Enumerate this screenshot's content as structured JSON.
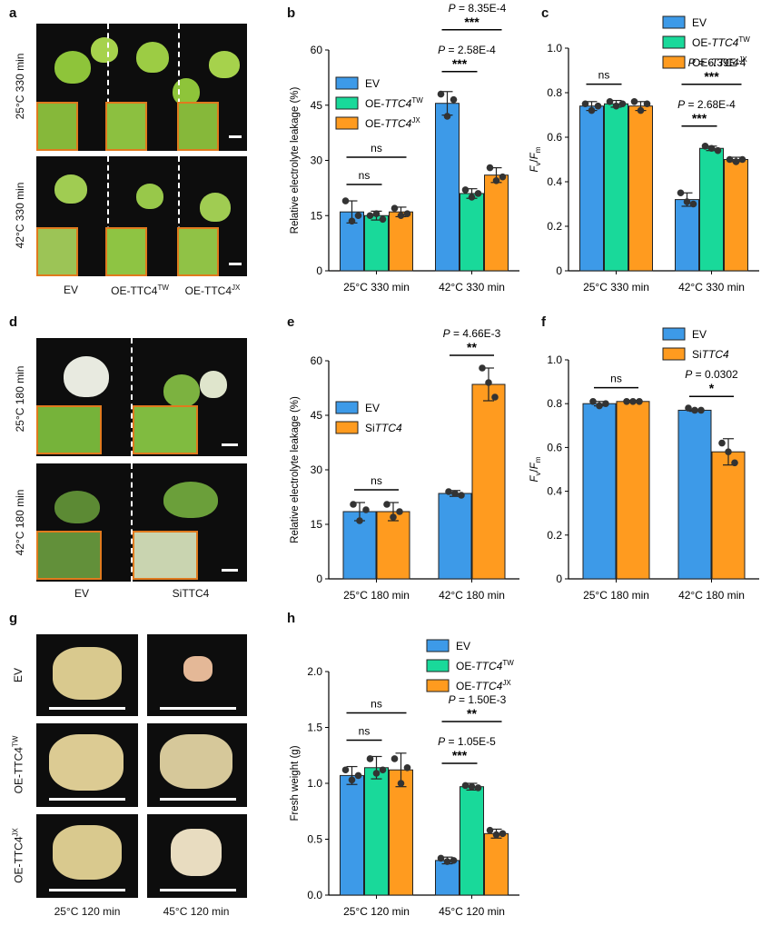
{
  "panel_letters": [
    "a",
    "b",
    "c",
    "d",
    "e",
    "f",
    "g",
    "h"
  ],
  "colors": {
    "EV": "#3d9ae8",
    "OE_TW": "#19d99a",
    "OE_JX": "#ff9b1f",
    "Si": "#ff9b1f",
    "inset": "#e07a1e"
  },
  "photo_panels": {
    "a": {
      "rows": [
        "25°C 330 min",
        "42°C 330 min"
      ],
      "cols": [
        "EV",
        "OE-TTC4",
        "OE-TTC4"
      ],
      "col_sup": [
        "",
        "TW",
        "JX"
      ]
    },
    "d": {
      "rows": [
        "25°C 180 min",
        "42°C 180 min"
      ],
      "cols": [
        "EV",
        "SiTTC4"
      ],
      "col_italic_prefix": [
        "",
        "Si"
      ]
    },
    "g": {
      "rows": [
        "EV",
        "OE-TTC4",
        "OE-TTC4"
      ],
      "row_sup": [
        "",
        "TW",
        "JX"
      ],
      "cols": [
        "25°C 120 min",
        "45°C 120 min"
      ]
    }
  },
  "chart_data": [
    {
      "panel": "b",
      "type": "bar",
      "ylabel": "Relative electrolyte leakage (%)",
      "ylim": [
        0,
        60
      ],
      "yticks": [
        "0",
        "15",
        "30",
        "45",
        "60"
      ],
      "categories": [
        "25°C 330 min",
        "42°C 330 min"
      ],
      "legend": [
        "EV",
        "OE-TTC4TW",
        "OE-TTC4JX"
      ],
      "series": [
        {
          "name": "EV",
          "color": "#3d9ae8",
          "values": [
            16,
            45.5
          ],
          "err": [
            3,
            3.2
          ],
          "points": [
            [
              19,
              13.5,
              15
            ],
            [
              48,
              42,
              46.5
            ]
          ]
        },
        {
          "name": "OE-TTC4TW",
          "color": "#19d99a",
          "values": [
            15,
            21
          ],
          "err": [
            1.2,
            1.3
          ],
          "points": [
            [
              15,
              15.5,
              14
            ],
            [
              22,
              20,
              21
            ]
          ]
        },
        {
          "name": "OE-TTC4JX",
          "color": "#ff9b1f",
          "values": [
            16,
            26
          ],
          "err": [
            1.3,
            2
          ],
          "points": [
            [
              17,
              15,
              15.5
            ],
            [
              28,
              24.5,
              25.5
            ]
          ]
        }
      ],
      "annotations": {
        "ns": [
          "ns",
          "ns"
        ],
        "p1": "P = 8.35E-4",
        "p1_stars": "***",
        "p2": "P = 2.58E-4",
        "p2_stars": "***"
      }
    },
    {
      "panel": "c",
      "type": "bar",
      "ylabel": "Fv/Fm",
      "ylim": [
        0,
        1.0
      ],
      "yticks": [
        "0",
        "0.2",
        "0.4",
        "0.6",
        "0.8",
        "1.0"
      ],
      "categories": [
        "25°C 330 min",
        "42°C 330 min"
      ],
      "legend": [
        "EV",
        "OE-TTC4TW",
        "OE-TTC4JX"
      ],
      "series": [
        {
          "name": "EV",
          "color": "#3d9ae8",
          "values": [
            0.74,
            0.32
          ],
          "err": [
            0.02,
            0.03
          ],
          "points": [
            [
              0.75,
              0.72,
              0.74
            ],
            [
              0.35,
              0.31,
              0.3
            ]
          ]
        },
        {
          "name": "OE-TTC4TW",
          "color": "#19d99a",
          "values": [
            0.75,
            0.55
          ],
          "err": [
            0.015,
            0.01
          ],
          "points": [
            [
              0.76,
              0.74,
              0.75
            ],
            [
              0.56,
              0.55,
              0.54
            ]
          ]
        },
        {
          "name": "OE-TTC4JX",
          "color": "#ff9b1f",
          "values": [
            0.74,
            0.5
          ],
          "err": [
            0.02,
            0.01
          ],
          "points": [
            [
              0.76,
              0.72,
              0.75
            ],
            [
              0.5,
              0.49,
              0.5
            ]
          ]
        }
      ],
      "annotations": {
        "ns": [
          "ns"
        ],
        "p1": "P = 6.39E-4",
        "p1_stars": "***",
        "p2": "P = 2.68E-4",
        "p2_stars": "***"
      }
    },
    {
      "panel": "e",
      "type": "bar",
      "ylabel": "Relative electrolyte leakage (%)",
      "ylim": [
        0,
        60
      ],
      "yticks": [
        "0",
        "15",
        "30",
        "45",
        "60"
      ],
      "categories": [
        "25°C 180 min",
        "42°C 180 min"
      ],
      "legend": [
        "EV",
        "SiTTC4"
      ],
      "series": [
        {
          "name": "EV",
          "color": "#3d9ae8",
          "values": [
            18.5,
            23.5
          ],
          "err": [
            2.5,
            0.8
          ],
          "points": [
            [
              20.5,
              16,
              19
            ],
            [
              24,
              23.5,
              23
            ]
          ]
        },
        {
          "name": "SiTTC4",
          "color": "#ff9b1f",
          "values": [
            18.5,
            53.5
          ],
          "err": [
            2.5,
            4.5
          ],
          "points": [
            [
              20.5,
              17,
              18.5
            ],
            [
              58,
              54,
              50
            ]
          ]
        }
      ],
      "annotations": {
        "ns": [
          "ns"
        ],
        "p1": "P = 4.66E-3",
        "p1_stars": "**"
      }
    },
    {
      "panel": "f",
      "type": "bar",
      "ylabel": "Fv/Fm",
      "ylim": [
        0,
        1.0
      ],
      "yticks": [
        "0",
        "0.2",
        "0.4",
        "0.6",
        "0.8",
        "1.0"
      ],
      "categories": [
        "25°C 180 min",
        "42°C 180 min"
      ],
      "legend": [
        "EV",
        "SiTTC4"
      ],
      "series": [
        {
          "name": "EV",
          "color": "#3d9ae8",
          "values": [
            0.8,
            0.77
          ],
          "err": [
            0.01,
            0.005
          ],
          "points": [
            [
              0.81,
              0.79,
              0.8
            ],
            [
              0.78,
              0.77,
              0.77
            ]
          ]
        },
        {
          "name": "SiTTC4",
          "color": "#ff9b1f",
          "values": [
            0.81,
            0.58
          ],
          "err": [
            0.005,
            0.06
          ],
          "points": [
            [
              0.81,
              0.81,
              0.81
            ],
            [
              0.62,
              0.58,
              0.53
            ]
          ]
        }
      ],
      "annotations": {
        "ns": [
          "ns"
        ],
        "p1": "P = 0.0302",
        "p1_stars": "*"
      }
    },
    {
      "panel": "h",
      "type": "bar",
      "ylabel": "Fresh weight (g)",
      "ylim": [
        0,
        2.0
      ],
      "yticks": [
        "0.0",
        "0.5",
        "1.0",
        "1.5",
        "2.0"
      ],
      "categories": [
        "25°C 120 min",
        "45°C 120 min"
      ],
      "legend": [
        "EV",
        "OE-TTC4TW",
        "OE-TTC4JX"
      ],
      "series": [
        {
          "name": "EV",
          "color": "#3d9ae8",
          "values": [
            1.07,
            0.31
          ],
          "err": [
            0.08,
            0.03
          ],
          "points": [
            [
              1.12,
              1.03,
              1.07
            ],
            [
              0.33,
              0.3,
              0.31
            ]
          ]
        },
        {
          "name": "OE-TTC4TW",
          "color": "#19d99a",
          "values": [
            1.14,
            0.97
          ],
          "err": [
            0.1,
            0.03
          ],
          "points": [
            [
              1.22,
              1.09,
              1.12
            ],
            [
              0.98,
              0.97,
              0.96
            ]
          ]
        },
        {
          "name": "OE-TTC4JX",
          "color": "#ff9b1f",
          "values": [
            1.12,
            0.55
          ],
          "err": [
            0.15,
            0.04
          ],
          "points": [
            [
              1.22,
              1.0,
              1.14
            ],
            [
              0.58,
              0.54,
              0.55
            ]
          ]
        }
      ],
      "annotations": {
        "ns": [
          "ns",
          "ns"
        ],
        "p1": "P = 1.50E-3",
        "p1_stars": "**",
        "p2": "P = 1.05E-5",
        "p2_stars": "***"
      }
    }
  ]
}
